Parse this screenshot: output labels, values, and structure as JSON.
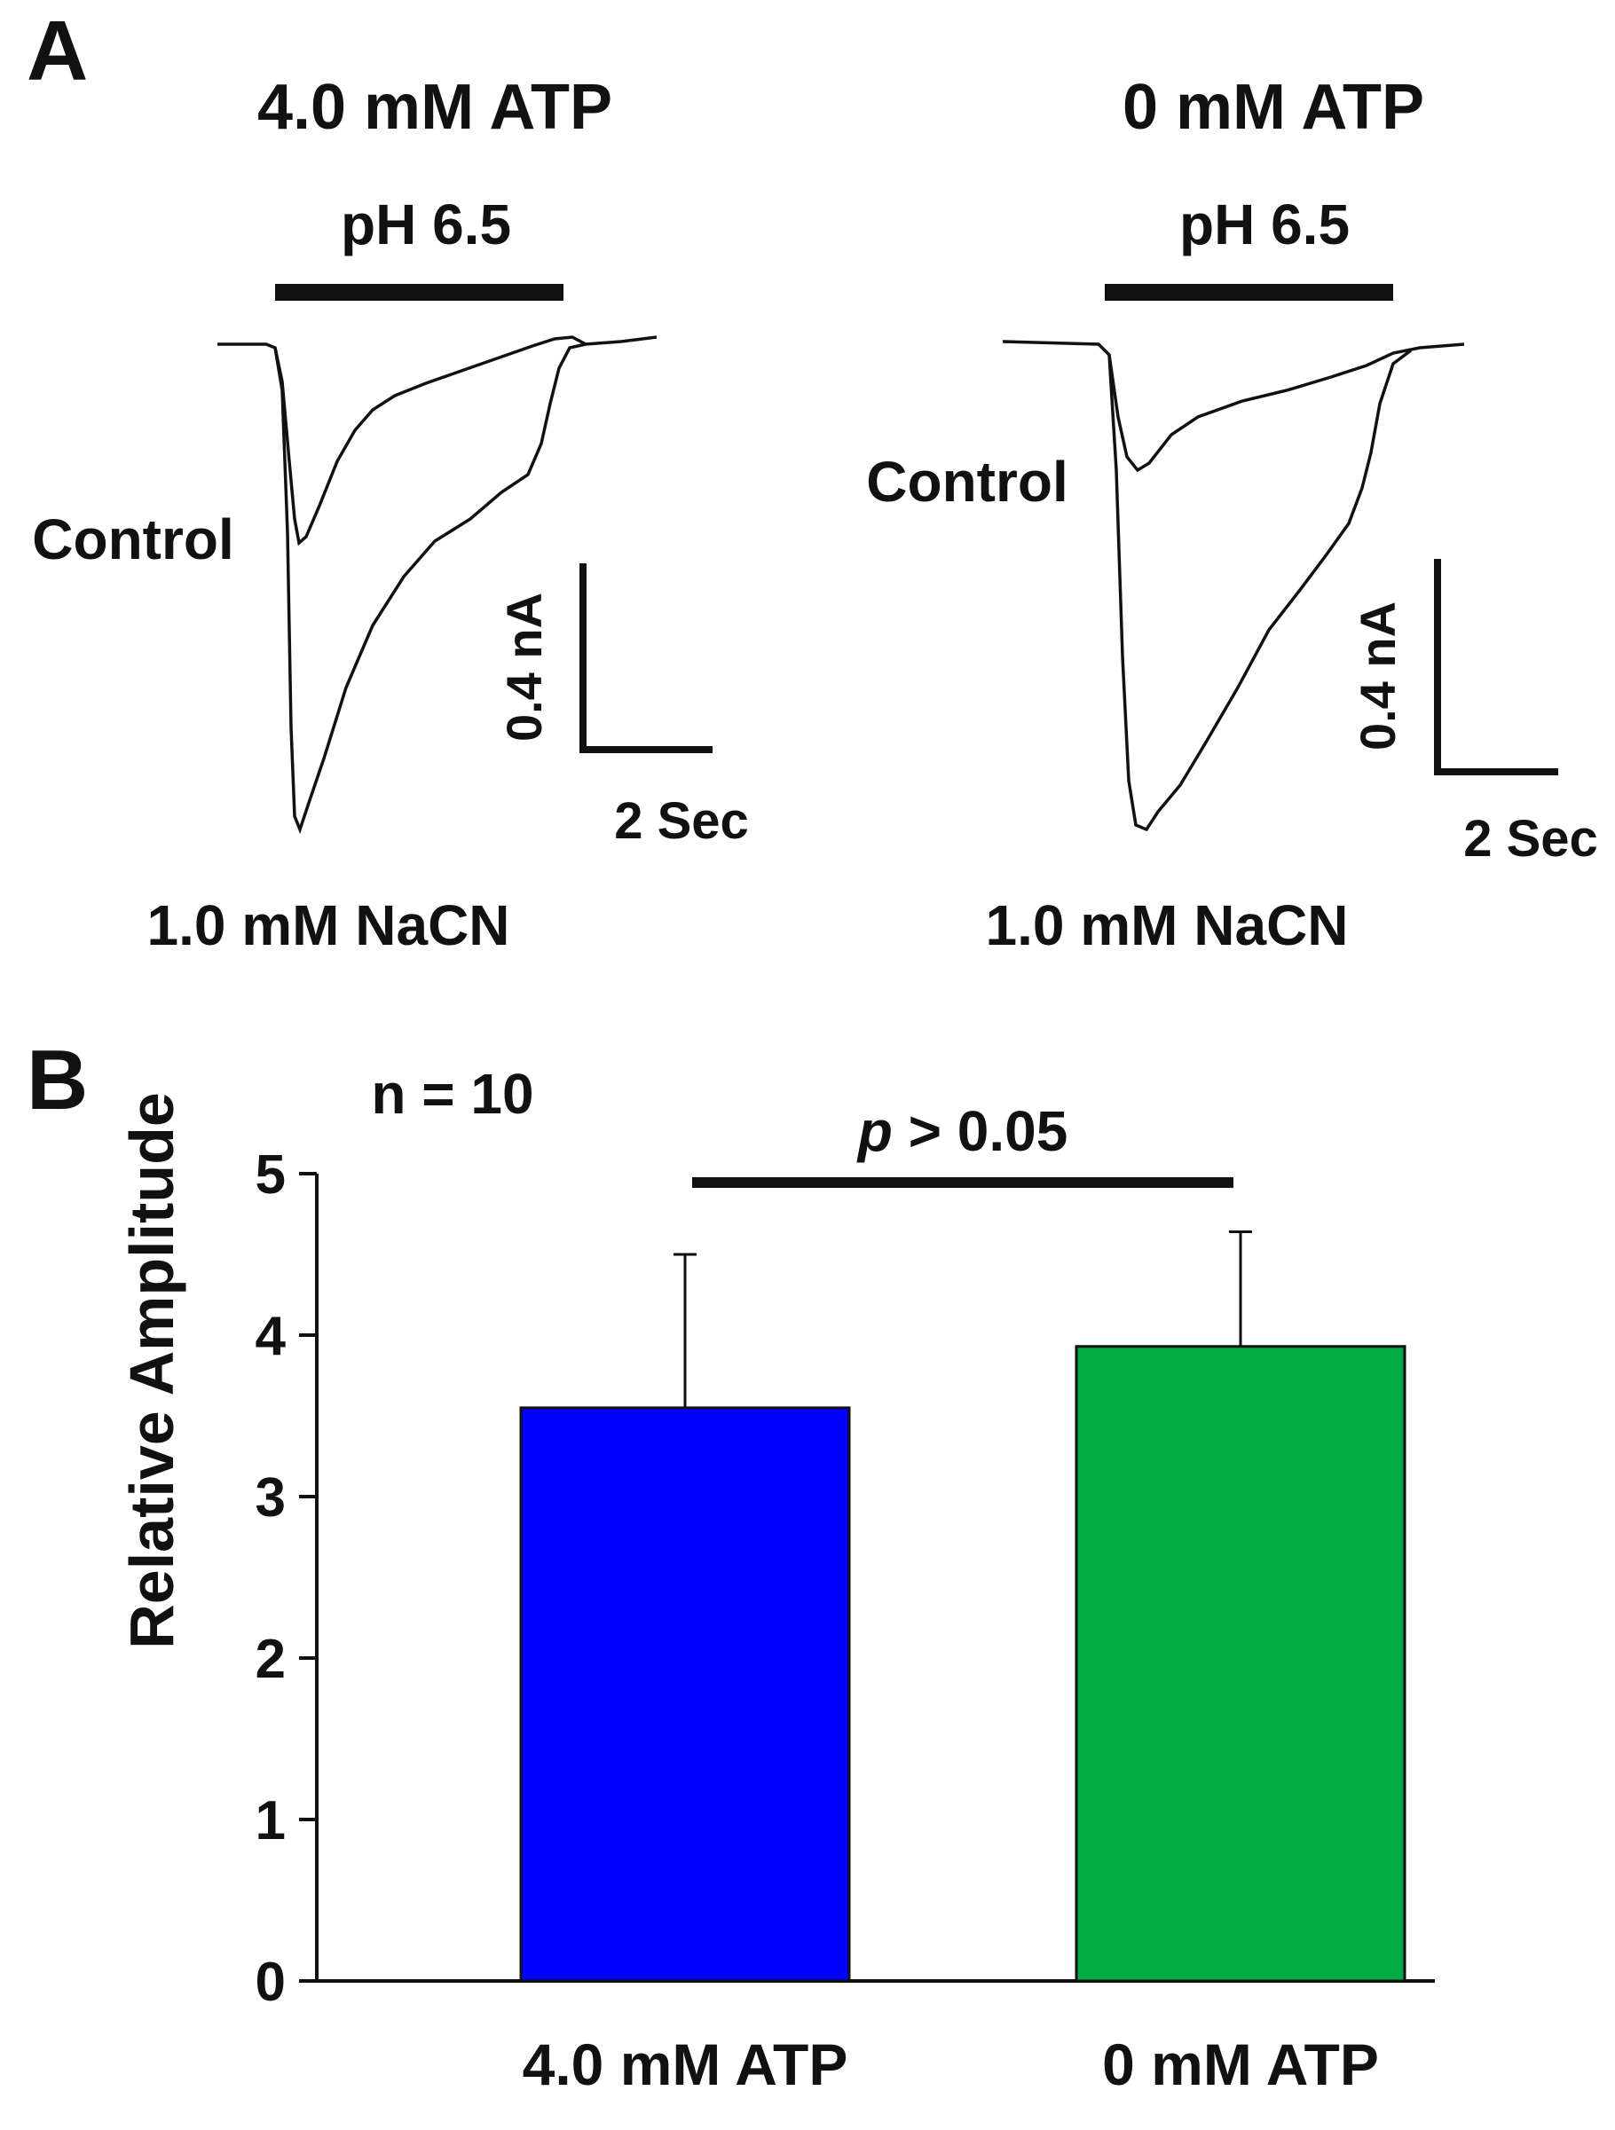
{
  "panel_a": {
    "label": "A",
    "left": {
      "title": "4.0 mM ATP",
      "stimulus": "pH 6.5",
      "control_label": "Control",
      "treatment_label": "1.0 mM NaCN",
      "scale_y": "0.4 nA",
      "scale_x": "2 Sec"
    },
    "right": {
      "title": "0 mM ATP",
      "stimulus": "pH 6.5",
      "control_label": "Control",
      "treatment_label": "1.0 mM NaCN",
      "scale_y": "0.4 nA",
      "scale_x": "2 Sec"
    }
  },
  "panel_b": {
    "label": "B"
  },
  "chart_data": {
    "type": "bar",
    "title": "",
    "annotation_n": "n = 10",
    "significance_text": "p > 0.05",
    "significance_symbol": "p",
    "significance_rest": " > 0.05",
    "xlabel": "",
    "ylabel": "Relative Amplitude",
    "ylim": [
      0,
      5
    ],
    "yticks": [
      "0",
      "1",
      "2",
      "3",
      "4",
      "5"
    ],
    "categories": [
      "4.0 mM ATP",
      "0 mM ATP"
    ],
    "values": [
      3.55,
      3.93
    ],
    "errors": [
      0.95,
      0.71
    ],
    "colors": [
      "#0000ff",
      "#00aa44"
    ],
    "grid": false
  }
}
